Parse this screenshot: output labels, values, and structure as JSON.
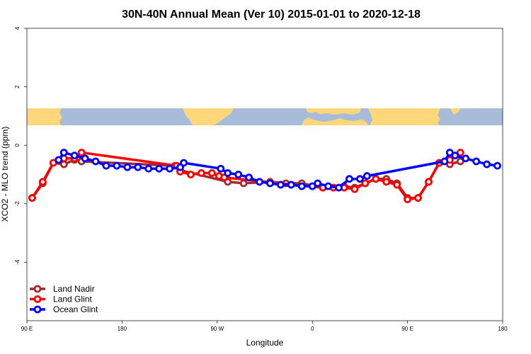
{
  "chart_data": {
    "type": "line",
    "title": "30N-40N Annual Mean (Ver 10)   2015-01-01 to 2020-12-18",
    "xlabel": "Longitude",
    "ylabel": "XCO2 - MLO trend (ppm)",
    "xlim": [
      -90,
      180
    ],
    "ylim": [
      -6,
      4
    ],
    "x_ticks": [
      {
        "value": -90,
        "label": "90 E"
      },
      {
        "value": -36,
        "label": "180"
      },
      {
        "value": 18,
        "label": "90 W"
      },
      {
        "value": 72,
        "label": "0"
      },
      {
        "value": 126,
        "label": "90 E"
      },
      {
        "value": 180,
        "label": "180"
      }
    ],
    "y_ticks": [
      {
        "value": 4,
        "label": "4"
      },
      {
        "value": 2,
        "label": "2"
      },
      {
        "value": 0,
        "label": "0"
      },
      {
        "value": -2,
        "label": "-2"
      },
      {
        "value": -4,
        "label": "-4"
      }
    ],
    "legend_position": "bottom-left",
    "colors": {
      "land_nadir": "#a52a2a",
      "land_glint": "#ff0000",
      "ocean_glint": "#0000ff",
      "ocean_map": "#a7bcd9",
      "land_map": "#fed77a"
    },
    "series": [
      {
        "name": "Land Nadir",
        "color": "#a52a2a",
        "points": [
          [
            -87,
            -1.8
          ],
          [
            -81,
            -1.3
          ],
          [
            -75,
            -0.6
          ],
          [
            -69,
            -0.65
          ],
          [
            -63,
            -0.5
          ],
          [
            -59,
            -0.55
          ],
          [
            -6,
            -0.7
          ],
          [
            -3,
            -0.85
          ],
          [
            24,
            -1.25
          ],
          [
            33,
            -1.3
          ],
          [
            48,
            -1.25
          ],
          [
            57,
            -1.3
          ],
          [
            66,
            -1.3
          ],
          [
            78,
            -1.45
          ],
          [
            84,
            -1.45
          ],
          [
            90,
            -1.4
          ],
          [
            96,
            -1.45
          ],
          [
            102,
            -1.3
          ],
          [
            108,
            -1.15
          ],
          [
            114,
            -1.15
          ],
          [
            120,
            -1.3
          ],
          [
            126,
            -1.8
          ],
          [
            132,
            -1.8
          ],
          [
            138,
            -1.25
          ],
          [
            144,
            -0.6
          ],
          [
            150,
            -0.65
          ],
          [
            156,
            -0.55
          ]
        ]
      },
      {
        "name": "Land Glint",
        "color": "#ff0000",
        "points": [
          [
            -87,
            -1.8
          ],
          [
            -81,
            -1.25
          ],
          [
            -75,
            -0.6
          ],
          [
            -69,
            -0.45
          ],
          [
            -63,
            -0.45
          ],
          [
            -59,
            -0.25
          ],
          [
            -5,
            -0.7
          ],
          [
            -3,
            -0.9
          ],
          [
            3,
            -1.0
          ],
          [
            9,
            -0.95
          ],
          [
            15,
            -0.95
          ],
          [
            19,
            -1.05
          ],
          [
            22,
            -1.1
          ],
          [
            78,
            -1.45
          ],
          [
            84,
            -1.45
          ],
          [
            90,
            -1.45
          ],
          [
            96,
            -1.5
          ],
          [
            102,
            -1.3
          ],
          [
            108,
            -1.15
          ],
          [
            114,
            -1.25
          ],
          [
            120,
            -1.35
          ],
          [
            126,
            -1.85
          ],
          [
            132,
            -1.8
          ],
          [
            138,
            -1.25
          ],
          [
            144,
            -0.6
          ],
          [
            150,
            -0.5
          ],
          [
            156,
            -0.25
          ]
        ]
      },
      {
        "name": "Ocean Glint",
        "color": "#0000ff",
        "points": [
          [
            -72,
            -0.5
          ],
          [
            -69,
            -0.25
          ],
          [
            -63,
            -0.35
          ],
          [
            -57,
            -0.45
          ],
          [
            -51,
            -0.55
          ],
          [
            -45,
            -0.7
          ],
          [
            -39,
            -0.7
          ],
          [
            -33,
            -0.75
          ],
          [
            -27,
            -0.75
          ],
          [
            -21,
            -0.8
          ],
          [
            -15,
            -0.8
          ],
          [
            -9,
            -0.8
          ],
          [
            -3,
            -0.75
          ],
          [
            -1,
            -0.6
          ],
          [
            20,
            -0.8
          ],
          [
            24,
            -0.95
          ],
          [
            30,
            -1.0
          ],
          [
            36,
            -1.1
          ],
          [
            42,
            -1.25
          ],
          [
            48,
            -1.3
          ],
          [
            54,
            -1.35
          ],
          [
            60,
            -1.35
          ],
          [
            66,
            -1.4
          ],
          [
            72,
            -1.4
          ],
          [
            75,
            -1.3
          ],
          [
            81,
            -1.4
          ],
          [
            87,
            -1.45
          ],
          [
            93,
            -1.15
          ],
          [
            99,
            -1.15
          ],
          [
            103,
            -1.05
          ],
          [
            147,
            -0.55
          ],
          [
            150,
            -0.25
          ],
          [
            153,
            -0.35
          ],
          [
            159,
            -0.45
          ],
          [
            165,
            -0.55
          ],
          [
            171,
            -0.65
          ],
          [
            177,
            -0.7
          ]
        ]
      }
    ]
  }
}
